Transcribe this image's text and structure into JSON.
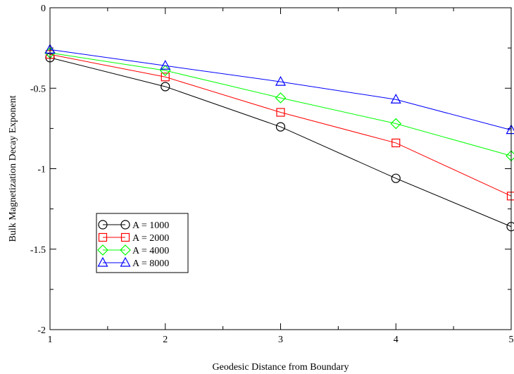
{
  "chart_data": {
    "type": "line",
    "title": "",
    "xlabel": "Geodesic Distance from Boundary",
    "ylabel": "Bulk Magnetization Decay Exponent",
    "xlim": [
      1,
      5
    ],
    "ylim": [
      -2,
      0
    ],
    "x_ticks": [
      1,
      2,
      3,
      4,
      5
    ],
    "x_tick_labels": [
      "1",
      "2",
      "3",
      "4",
      "5"
    ],
    "y_ticks": [
      0,
      -0.5,
      -1,
      -1.5,
      -2
    ],
    "y_tick_labels": [
      "0",
      "-0.5",
      "-1",
      "-1.5",
      "-2"
    ],
    "grid": false,
    "legend_position": "lower-left",
    "x": [
      1,
      2,
      3,
      4,
      5
    ],
    "series": [
      {
        "name": "A = 1000",
        "color": "#000000",
        "marker": "circle",
        "values": [
          -0.31,
          -0.49,
          -0.74,
          -1.06,
          -1.36
        ]
      },
      {
        "name": "A = 2000",
        "color": "#ff0000",
        "marker": "square",
        "values": [
          -0.29,
          -0.43,
          -0.65,
          -0.84,
          -1.17
        ]
      },
      {
        "name": "A = 4000",
        "color": "#00ff00",
        "marker": "diamond",
        "values": [
          -0.28,
          -0.39,
          -0.56,
          -0.72,
          -0.92
        ]
      },
      {
        "name": "A = 8000",
        "color": "#0000ff",
        "marker": "triangle",
        "values": [
          -0.26,
          -0.36,
          -0.46,
          -0.57,
          -0.76
        ]
      }
    ]
  }
}
